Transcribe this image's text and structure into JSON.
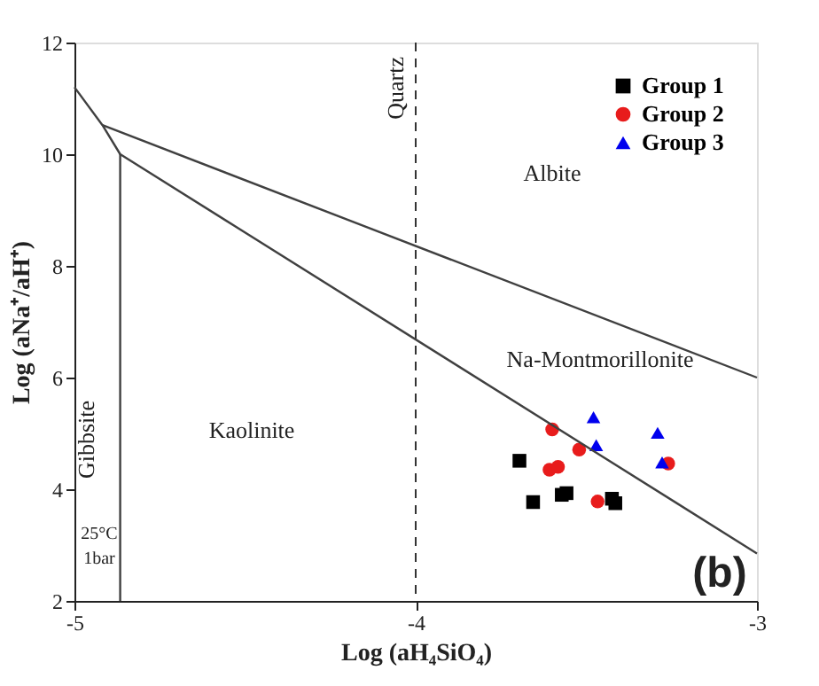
{
  "chart_data": {
    "type": "scatter",
    "xlabel": "Log (aH₄SiO₄)",
    "ylabel": "Log (aNa⁺/aH⁺)",
    "xlim": [
      -5,
      -3
    ],
    "ylim": [
      2,
      12
    ],
    "xticks": [
      -5,
      -4,
      -3
    ],
    "yticks": [
      2,
      4,
      6,
      8,
      10,
      12
    ],
    "grid": false,
    "legend": "top right",
    "series": [
      {
        "name": "Group 1",
        "color": "#000000",
        "marker": "square",
        "x": [
          -3.696,
          -3.656,
          -3.572,
          -3.558,
          -3.425,
          -3.415
        ],
        "values": [
          4.51,
          3.77,
          3.9,
          3.93,
          3.83,
          3.75
        ]
      },
      {
        "name": "Group 2",
        "color": "#e81c1c",
        "marker": "circle",
        "x": [
          -3.6,
          -3.521,
          -3.608,
          -3.583,
          -3.467,
          -3.26
        ],
        "values": [
          5.07,
          4.71,
          4.35,
          4.4,
          3.78,
          4.46
        ]
      },
      {
        "name": "Group 3",
        "color": "#0000ee",
        "marker": "triangle",
        "x": [
          -3.479,
          -3.471,
          -3.291,
          -3.278
        ],
        "values": [
          5.29,
          4.79,
          5.01,
          4.48
        ]
      },
      {
        "type": "line",
        "color": "#404040",
        "line_style": "solid",
        "marker": "none",
        "x": [
          -5,
          -4.918,
          -4.866,
          -3
        ],
        "values": [
          11.2,
          10.52,
          10.0,
          2.85
        ]
      },
      {
        "type": "line",
        "color": "#404040",
        "line_style": "solid",
        "marker": "none",
        "x": [
          -4.918,
          -3
        ],
        "values": [
          10.52,
          6.0
        ]
      },
      {
        "type": "line",
        "color": "#404040",
        "line_style": "solid",
        "marker": "none",
        "x": [
          -4.866,
          -4.866
        ],
        "values": [
          10.0,
          2.0
        ]
      }
    ],
    "ref_lines": [
      {
        "axis": "x",
        "value": -4,
        "label": "Quartz",
        "color": "#333333",
        "line_style": "dashed"
      }
    ],
    "annotations": [
      "Albite",
      "Na-Montmorillonite",
      "Kaolinite",
      "Gibbsite",
      "25°C",
      "1bar",
      "(b)"
    ]
  }
}
